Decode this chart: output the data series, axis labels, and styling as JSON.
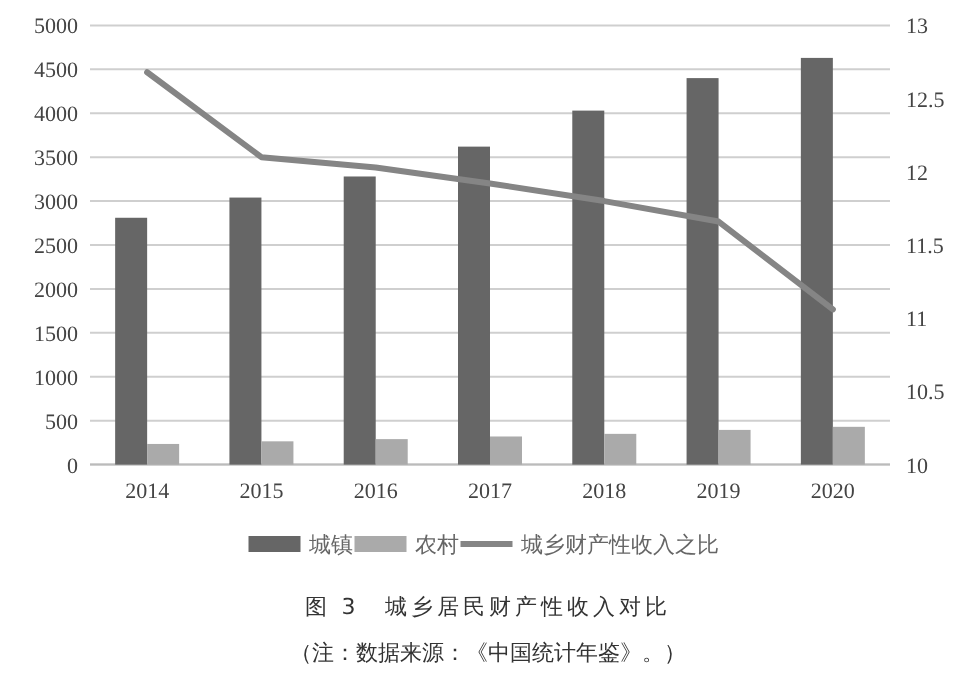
{
  "chart_data": {
    "type": "bar",
    "title": "图 3　城乡居民财产性收入对比",
    "annotations": [
      "（注：数据来源：《中国统计年鉴》。）"
    ],
    "categories": [
      "2014",
      "2015",
      "2016",
      "2017",
      "2018",
      "2019",
      "2020"
    ],
    "series": [
      {
        "name": "城镇",
        "color": "#666666",
        "values": [
          2810,
          3040,
          3280,
          3620,
          4030,
          4400,
          4630
        ]
      },
      {
        "name": "农村",
        "color": "#aaaaaa",
        "values": [
          235,
          265,
          290,
          320,
          350,
          395,
          430
        ]
      },
      {
        "name": "城乡财产性收入之比",
        "color": "#858585",
        "type": "line",
        "axis": "y2",
        "values": [
          12.68,
          12.1,
          12.03,
          11.92,
          11.8,
          11.66,
          11.06
        ]
      }
    ],
    "ylim": [
      0,
      5000
    ],
    "yticks": [
      0,
      500,
      1000,
      1500,
      2000,
      2500,
      3000,
      3500,
      4000,
      4500,
      5000
    ],
    "y2lim": [
      10,
      13
    ],
    "y2ticks": [
      10,
      10.5,
      11,
      11.5,
      12,
      12.5,
      13
    ],
    "grid": "y",
    "legend": "bottom"
  }
}
